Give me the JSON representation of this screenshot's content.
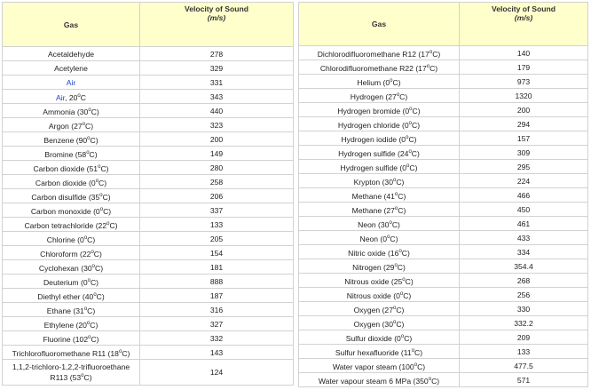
{
  "headers": {
    "gas": "Gas",
    "velocity": "Velocity of Sound",
    "unit": "(m/s)"
  },
  "left": [
    {
      "gas": "Acetaldehyde",
      "v": "278"
    },
    {
      "gas": "Acetylene",
      "v": "329"
    },
    {
      "gas": "Air",
      "v": "331",
      "link": true
    },
    {
      "gas": "Air, 20",
      "gasLink": "Air",
      "gasRest": ", 20",
      "sup": "o",
      "tail": "C",
      "v": "343"
    },
    {
      "gas": "Ammonia (30",
      "sup": "o",
      "tail": "C)",
      "v": "440"
    },
    {
      "gas": "Argon (27",
      "sup": "o",
      "tail": "C)",
      "v": "323"
    },
    {
      "gas": "Benzene (90",
      "sup": "o",
      "tail": "C)",
      "v": "200"
    },
    {
      "gas": "Bromine (58",
      "sup": "o",
      "tail": "C)",
      "v": "149"
    },
    {
      "gas": "Carbon dioxide (51",
      "sup": "o",
      "tail": "C)",
      "v": "280"
    },
    {
      "gas": "Carbon dioxide (0",
      "sup": "o",
      "tail": "C)",
      "v": "258"
    },
    {
      "gas": "Carbon disulfide (35",
      "sup": "o",
      "tail": "C)",
      "v": "206"
    },
    {
      "gas": "Carbon monoxide (0",
      "sup": "o",
      "tail": "C)",
      "v": "337"
    },
    {
      "gas": "Carbon tetrachloride (22",
      "sup": "o",
      "tail": "C)",
      "v": "133"
    },
    {
      "gas": "Chlorine (0",
      "sup": "o",
      "tail": "C)",
      "v": "205"
    },
    {
      "gas": "Chloroform (22",
      "sup": "o",
      "tail": "C)",
      "v": "154"
    },
    {
      "gas": "Cyclohexan (30",
      "sup": "o",
      "tail": "C)",
      "v": "181"
    },
    {
      "gas": "Deuterium (0",
      "sup": "o",
      "tail": "C)",
      "v": "888"
    },
    {
      "gas": "Diethyl ether (40",
      "sup": "o",
      "tail": "C)",
      "v": "187"
    },
    {
      "gas": "Ethane (31",
      "sup": "o",
      "tail": "C)",
      "v": "316"
    },
    {
      "gas": "Ethylene (20",
      "sup": "o",
      "tail": "C)",
      "v": "327"
    },
    {
      "gas": "Fluorine (102",
      "sup": "o",
      "tail": "C)",
      "v": "332"
    },
    {
      "gas": "Trichlorofluoromethane R11 (18",
      "sup": "o",
      "tail": "C)",
      "v": "143"
    },
    {
      "gas": "1,1,2-trichloro-1,2,2-trifluoroethane R113 (53",
      "sup": "o",
      "tail": "C)",
      "v": "124",
      "tall": true
    }
  ],
  "right": [
    {
      "gas": "Dichlorodifluoromethane R12 (17",
      "sup": "o",
      "tail": "C)",
      "v": "140"
    },
    {
      "gas": "Chlorodifluoromethane R22 (17",
      "sup": "o",
      "tail": "C)",
      "v": "179"
    },
    {
      "gas": "Helium (0",
      "sup": "o",
      "tail": "C)",
      "v": "973"
    },
    {
      "gas": "Hydrogen (27",
      "sup": "o",
      "tail": "C)",
      "v": "1320"
    },
    {
      "gas": "Hydrogen bromide (0",
      "sup": "o",
      "tail": "C)",
      "v": "200"
    },
    {
      "gas": "Hydrogen chloride (0",
      "sup": "o",
      "tail": "C)",
      "v": "294"
    },
    {
      "gas": "Hydrogen iodide (0",
      "sup": "o",
      "tail": "C)",
      "v": "157"
    },
    {
      "gas": "Hydrogen sulfide (24",
      "sup": "o",
      "tail": "C)",
      "v": "309"
    },
    {
      "gas": "Hydrogen sulfide (0",
      "sup": "o",
      "tail": "C)",
      "v": "295"
    },
    {
      "gas": "Krypton (30",
      "sup": "o",
      "tail": "C)",
      "v": "224"
    },
    {
      "gas": "Methane (41",
      "sup": "o",
      "tail": "C)",
      "v": "466"
    },
    {
      "gas": "Methane (27",
      "sup": "o",
      "tail": "C)",
      "v": "450"
    },
    {
      "gas": "Neon (30",
      "sup": "o",
      "tail": "C)",
      "v": "461"
    },
    {
      "gas": "Neon (0",
      "sup": "o",
      "tail": "C)",
      "v": "433"
    },
    {
      "gas": "Nitric oxide (16",
      "sup": "o",
      "tail": "C)",
      "v": "334"
    },
    {
      "gas": "Nitrogen (29",
      "sup": "o",
      "tail": "C)",
      "v": "354.4"
    },
    {
      "gas": "Nitrous oxide (25",
      "sup": "o",
      "tail": "C)",
      "v": "268"
    },
    {
      "gas": "Nitrous oxide (0",
      "sup": "o",
      "tail": "C)",
      "v": "256"
    },
    {
      "gas": "Oxygen (27",
      "sup": "o",
      "tail": "C)",
      "v": "330"
    },
    {
      "gas": "Oxygen (30",
      "sup": "o",
      "tail": "C)",
      "v": "332.2"
    },
    {
      "gas": "Sulfur dioxide (0",
      "sup": "o",
      "tail": "C)",
      "v": "209"
    },
    {
      "gas": "Sulfur hexafluoride (11",
      "sup": "o",
      "tail": "C)",
      "v": "133"
    },
    {
      "gas": "Water vapor steam (100",
      "sup": "o",
      "tail": "C)",
      "v": "477.5"
    },
    {
      "gas": "Water vapour steam 6 MPa (350",
      "sup": "o",
      "tail": "C)",
      "v": "571"
    }
  ],
  "colors": {
    "header_bg": "#ffffcc",
    "link": "#1a46c8",
    "border": "#d2d2d2"
  }
}
